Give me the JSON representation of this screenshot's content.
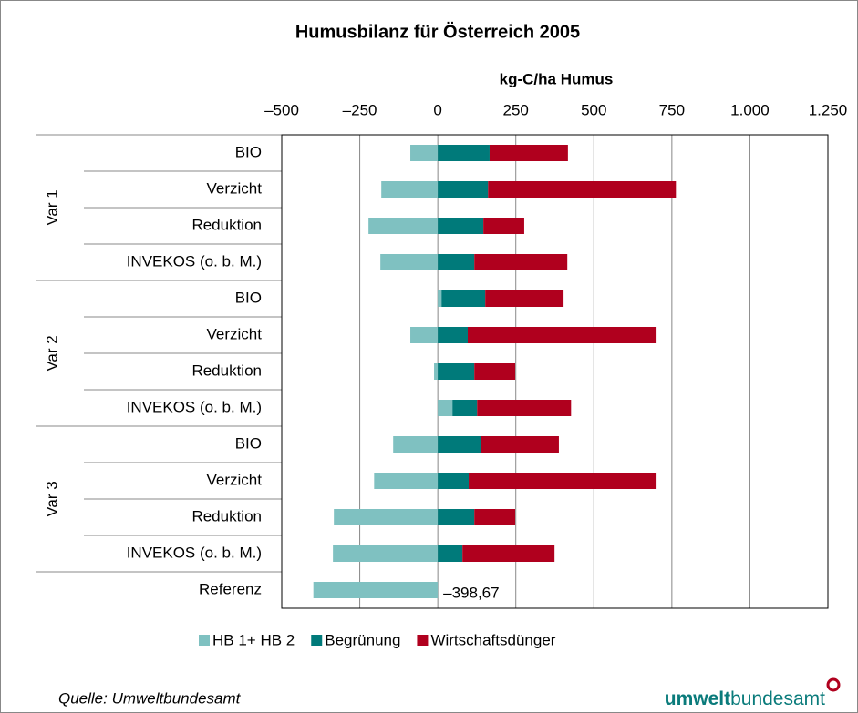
{
  "chart_data": {
    "type": "stacked_barh",
    "title": "Humusbilanz für Österreich 2005",
    "x_label": "kg-C/ha Humus",
    "categories": [
      "BIO",
      "Verzicht",
      "Reduktion",
      "INVEKOS (o. b. M.)",
      "BIO",
      "Verzicht",
      "Reduktion",
      "INVEKOS (o. b. M.)",
      "BIO",
      "Verzicht",
      "Reduktion",
      "INVEKOS (o. b. M.)",
      "Referenz"
    ],
    "groups": [
      "Var 1",
      "Var 1",
      "Var 1",
      "Var 1",
      "Var 2",
      "Var 2",
      "Var 2",
      "Var 2",
      "Var 3",
      "Var 3",
      "Var 3",
      "Var 3",
      null
    ],
    "series": [
      {
        "name": "HB 1+ HB 2",
        "color": "#7fc1c1",
        "values": [
          -88,
          -181,
          -222,
          -184,
          12,
          -88,
          -12,
          47,
          -143,
          -204,
          -333,
          -336,
          -398.67
        ],
        "value_labels": [
          null,
          null,
          null,
          null,
          null,
          null,
          null,
          null,
          null,
          null,
          null,
          null,
          "–398,67"
        ]
      },
      {
        "name": "Begrünung",
        "color": "#007a7a",
        "values": [
          166,
          161,
          146,
          117,
          140,
          96,
          117,
          79,
          137,
          99,
          117,
          79,
          null
        ]
      },
      {
        "name": "Wirtschaftsdünger",
        "color": "#b0001e",
        "values": [
          251,
          602,
          131,
          298,
          251,
          605,
          131,
          301,
          251,
          602,
          131,
          295,
          null
        ]
      }
    ],
    "xlim": [
      -500,
      1250
    ],
    "xticks": [
      {
        "value": -500,
        "label": "–500"
      },
      {
        "value": -250,
        "label": "–250"
      },
      0,
      250,
      500,
      750,
      {
        "value": 1000,
        "label": "1.000"
      },
      {
        "value": 1250,
        "label": "1.250"
      }
    ],
    "grid": true,
    "legend": "bottom"
  },
  "source": "Quelle: Umweltbundesamt",
  "logo": [
    "umwelt",
    "bundesamt"
  ]
}
